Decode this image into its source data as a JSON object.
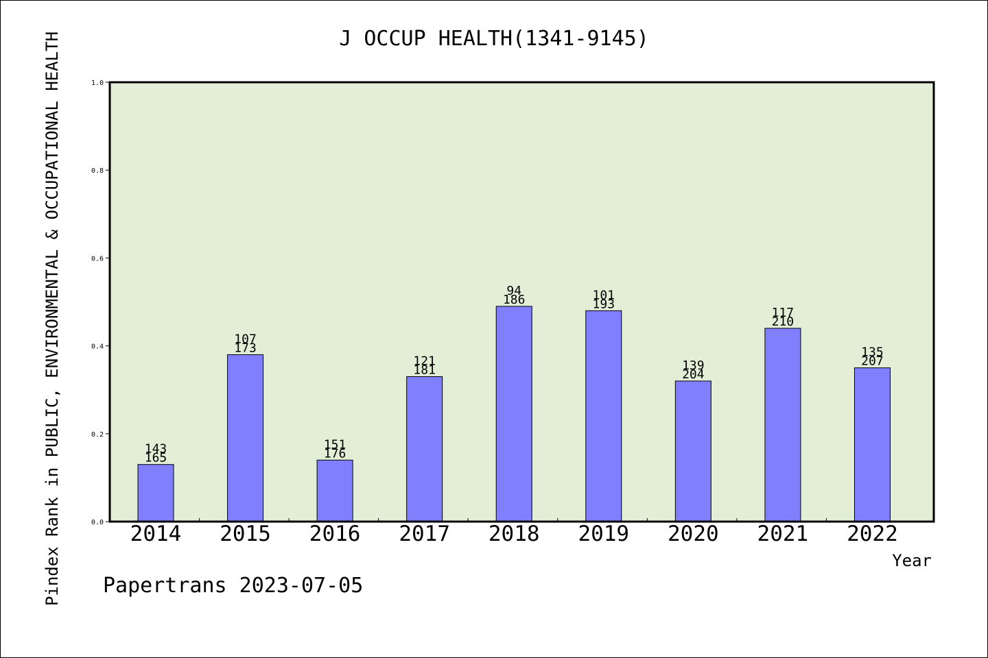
{
  "chart_data": {
    "type": "bar",
    "title": "J OCCUP HEALTH(1341-9145)",
    "xlabel": "Year",
    "ylabel": "Pindex Rank in PUBLIC, ENVIRONMENTAL & OCCUPATIONAL HEALTH",
    "ylim": [
      0,
      1
    ],
    "yticks": [
      "0.0",
      "0.2",
      "0.4",
      "0.6",
      "0.8",
      "1.0"
    ],
    "categories": [
      "2014",
      "2015",
      "2016",
      "2017",
      "2018",
      "2019",
      "2020",
      "2021",
      "2022"
    ],
    "values": [
      0.13,
      0.38,
      0.14,
      0.33,
      0.49,
      0.48,
      0.32,
      0.44,
      0.35
    ],
    "rank_top": [
      "143",
      "107",
      "151",
      "121",
      "94",
      "101",
      "139",
      "117",
      "135"
    ],
    "rank_bottom": [
      "165",
      "173",
      "176",
      "181",
      "186",
      "193",
      "204",
      "210",
      "207"
    ],
    "plot_background": "#e2efd6",
    "bar_color": "#8080ff",
    "grid": false,
    "legend": "none"
  },
  "footer": "Papertrans 2023-07-05"
}
